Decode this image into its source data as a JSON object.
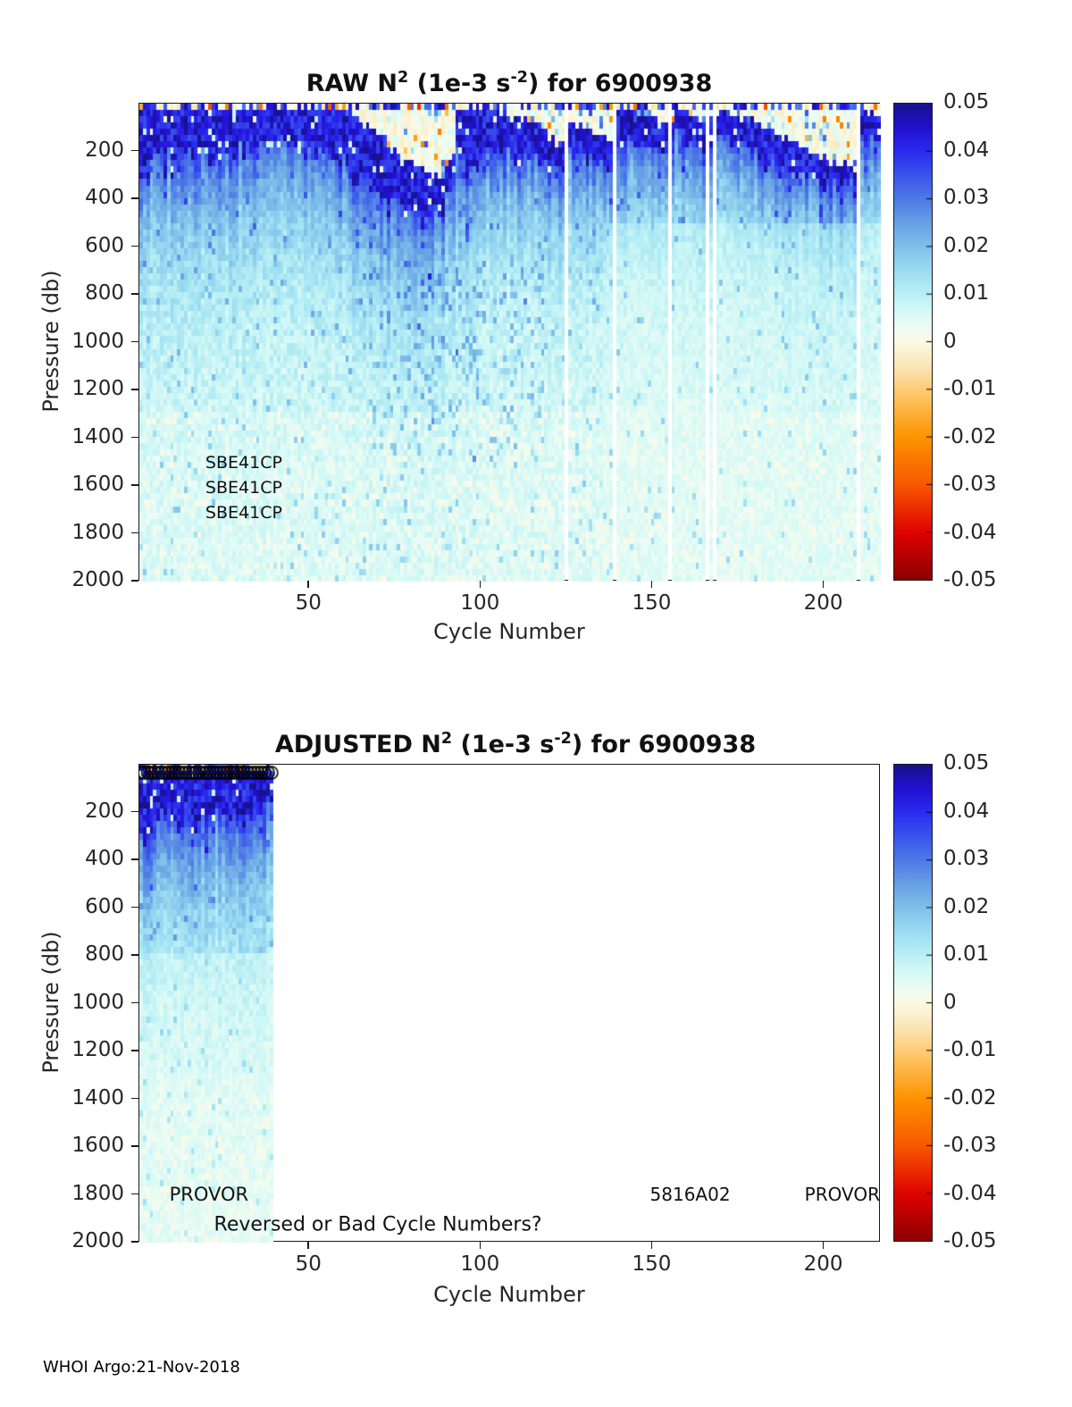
{
  "figure": {
    "footer": "WHOI Argo:21-Nov-2018",
    "background": "#ffffff",
    "axis_color": "#1a1a1a",
    "text_color": "#262626"
  },
  "colormap": {
    "stops": [
      [
        -0.05,
        "#8c0000"
      ],
      [
        -0.04,
        "#df0300"
      ],
      [
        -0.03,
        "#f85800"
      ],
      [
        -0.02,
        "#fd9400"
      ],
      [
        -0.012,
        "#fec25c"
      ],
      [
        -0.006,
        "#fbe2ac"
      ],
      [
        -0.002,
        "#fbf2d2"
      ],
      [
        0,
        "#fdf9e3"
      ],
      [
        0.003,
        "#ecfcf3"
      ],
      [
        0.007,
        "#d1f8f6"
      ],
      [
        0.011,
        "#b3ecf4"
      ],
      [
        0.015,
        "#9bdcf2"
      ],
      [
        0.02,
        "#7fc0ea"
      ],
      [
        0.025,
        "#66a0e4"
      ],
      [
        0.03,
        "#4e79e6"
      ],
      [
        0.035,
        "#3a54ec"
      ],
      [
        0.04,
        "#2a2bf0"
      ],
      [
        0.045,
        "#2210d0"
      ],
      [
        0.05,
        "#17128c"
      ]
    ]
  },
  "chart_data": [
    {
      "type": "heatmap",
      "panel": "RAW",
      "title": "RAW N² (1e-3 s⁻²) for 6900938",
      "title_segments": [
        {
          "text": "RAW N"
        },
        {
          "text": "2",
          "sup": true
        },
        {
          "text": " (1e-3 s"
        },
        {
          "text": "-2",
          "sup": true
        },
        {
          "text": ") for 6900938"
        }
      ],
      "xlabel": "Cycle Number",
      "ylabel": "Pressure (db)",
      "x_range": [
        1,
        216
      ],
      "y_range": [
        0,
        2000
      ],
      "x_ticks": [
        50,
        100,
        150,
        200
      ],
      "y_ticks": [
        200,
        400,
        600,
        800,
        1000,
        1200,
        1400,
        1600,
        1800,
        2000
      ],
      "colorbar": {
        "min": -0.05,
        "max": 0.05,
        "tick_labels": [
          "0.05",
          "0.04",
          "0.03",
          "0.02",
          "0.01",
          "0",
          "-0.01",
          "-0.02",
          "-0.03",
          "-0.04",
          "-0.05"
        ]
      },
      "missing_cycles": [
        125,
        139,
        155,
        166,
        168,
        210
      ],
      "annotations": [
        {
          "text": "SBE41CP",
          "cycle": 20,
          "db": 1505,
          "anchor": "left",
          "size": 19
        },
        {
          "text": "SBE41CP",
          "cycle": 20,
          "db": 1610,
          "anchor": "left",
          "size": 19
        },
        {
          "text": "SBE41CP",
          "cycle": 20,
          "db": 1715,
          "anchor": "left",
          "size": 19
        }
      ],
      "pattern": {
        "seed": 20181121,
        "rows": 76,
        "data_cycles": [
          1,
          216
        ],
        "band_top_anchors": [
          [
            1,
            4
          ],
          [
            18,
            6
          ],
          [
            38,
            12
          ],
          [
            52,
            8
          ],
          [
            58,
            15
          ],
          [
            64,
            60
          ],
          [
            70,
            130
          ],
          [
            77,
            210
          ],
          [
            84,
            280
          ],
          [
            89,
            310
          ],
          [
            92,
            200
          ],
          [
            93,
            15
          ],
          [
            102,
            12
          ],
          [
            110,
            40
          ],
          [
            116,
            90
          ],
          [
            121,
            150
          ],
          [
            124,
            180
          ],
          [
            126,
            70
          ],
          [
            130,
            100
          ],
          [
            136,
            150
          ],
          [
            138,
            170
          ],
          [
            140,
            8
          ],
          [
            146,
            35
          ],
          [
            152,
            75
          ],
          [
            155,
            90
          ],
          [
            157,
            20
          ],
          [
            161,
            45
          ],
          [
            165,
            85
          ],
          [
            169,
            12
          ],
          [
            175,
            45
          ],
          [
            183,
            100
          ],
          [
            190,
            150
          ],
          [
            196,
            205
          ],
          [
            202,
            240
          ],
          [
            208,
            265
          ],
          [
            210,
            270
          ],
          [
            211,
            25
          ],
          [
            216,
            55
          ]
        ],
        "band_thickness_anchors": [
          [
            1,
            270
          ],
          [
            20,
            210
          ],
          [
            40,
            170
          ],
          [
            55,
            200
          ],
          [
            65,
            240
          ],
          [
            75,
            240
          ],
          [
            85,
            180
          ],
          [
            92,
            140
          ],
          [
            95,
            240
          ],
          [
            105,
            210
          ],
          [
            115,
            160
          ],
          [
            124,
            110
          ],
          [
            127,
            130
          ],
          [
            138,
            110
          ],
          [
            141,
            150
          ],
          [
            150,
            120
          ],
          [
            156,
            110
          ],
          [
            160,
            120
          ],
          [
            168,
            110
          ],
          [
            172,
            150
          ],
          [
            182,
            140
          ],
          [
            192,
            130
          ],
          [
            200,
            110
          ],
          [
            209,
            90
          ],
          [
            211,
            130
          ],
          [
            216,
            110
          ]
        ],
        "deep_blue_patch": {
          "cycles": [
            68,
            118
          ],
          "depth": [
            650,
            1500
          ],
          "prob": 0.1,
          "add": 0.011
        },
        "surface_layer": "thin strip of near-zero / slightly negative (cream-orange) values at surface",
        "deep_background": "weak positive stratification ~0.002-0.01 (pale cyan) below 600 db with vertical streaks"
      }
    },
    {
      "type": "heatmap",
      "panel": "ADJUSTED",
      "title": "ADJUSTED N² (1e-3 s⁻²) for 6900938",
      "title_segments": [
        {
          "text": "ADJUSTED N"
        },
        {
          "text": "2",
          "sup": true
        },
        {
          "text": " (1e-3 s"
        },
        {
          "text": "-2",
          "sup": true
        },
        {
          "text": ") for 6900938"
        }
      ],
      "xlabel": "Cycle Number",
      "ylabel": "Pressure (db)",
      "x_range": [
        1,
        216
      ],
      "y_range": [
        0,
        2000
      ],
      "x_ticks": [
        50,
        100,
        150,
        200
      ],
      "y_ticks": [
        200,
        400,
        600,
        800,
        1000,
        1200,
        1400,
        1600,
        1800,
        2000
      ],
      "colorbar": {
        "min": -0.05,
        "max": 0.05,
        "tick_labels": [
          "0.05",
          "0.04",
          "0.03",
          "0.02",
          "0.01",
          "0",
          "-0.01",
          "-0.02",
          "-0.03",
          "-0.04",
          "-0.05"
        ]
      },
      "missing_cycles": [],
      "markers": {
        "shape": "circle",
        "cycles": [
          1,
          39
        ],
        "note": "row of black circle outlines along the top of the adjusted data"
      },
      "annotations": [
        {
          "text": "PROVOR",
          "cycle": 9.5,
          "db": 1800,
          "anchor": "left",
          "size": 21
        },
        {
          "text": "5816A02",
          "cycle": 149.5,
          "db": 1800,
          "anchor": "left",
          "size": 20
        },
        {
          "text": "PROVOR",
          "cycle": 216.5,
          "db": 1800,
          "anchor": "right",
          "size": 20
        },
        {
          "text": "Reversed or Bad Cycle Numbers?",
          "cycle": 22.5,
          "db": 1930,
          "anchor": "left",
          "size": 22
        }
      ],
      "pattern": {
        "seed": 5816,
        "rows": 76,
        "data_cycles": [
          1,
          39
        ],
        "band_top_anchors": [
          [
            1,
            4
          ],
          [
            18,
            6
          ],
          [
            30,
            10
          ],
          [
            39,
            12
          ]
        ],
        "band_thickness_anchors": [
          [
            1,
            270
          ],
          [
            20,
            210
          ],
          [
            33,
            190
          ],
          [
            39,
            170
          ]
        ],
        "deep_blue_patch": null,
        "surface_layer": "adjusted data exists only for cycles 1-39; cycles 40-216 are blank (missing)",
        "deep_background": "pale mint/cyan weak stratification below 800 db"
      }
    }
  ]
}
